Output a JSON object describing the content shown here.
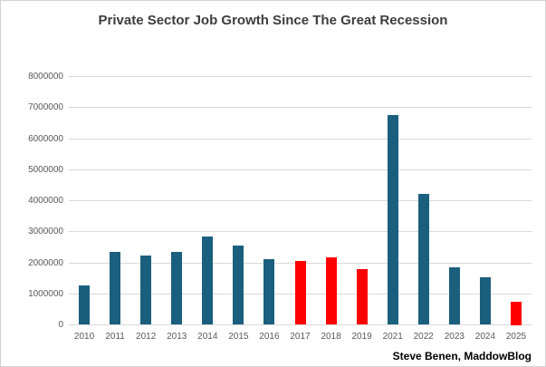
{
  "chart_data": {
    "type": "bar",
    "title": "Private Sector Job Growth Since The Great Recession",
    "attribution": "Steve Benen, MaddowBlog",
    "categories": [
      "2010",
      "2011",
      "2012",
      "2013",
      "2014",
      "2015",
      "2016",
      "2017",
      "2018",
      "2019",
      "2021",
      "2022",
      "2023",
      "2024",
      "2025"
    ],
    "values": [
      1280000,
      2350000,
      2240000,
      2350000,
      2840000,
      2550000,
      2130000,
      2070000,
      2180000,
      1800000,
      6770000,
      4210000,
      1840000,
      1540000,
      750000
    ],
    "highlight_years": [
      "2017",
      "2018",
      "2019",
      "2025"
    ],
    "ylim": [
      0,
      8000000
    ],
    "ytick_step": 1000000,
    "yticks": [
      0,
      1000000,
      2000000,
      3000000,
      4000000,
      5000000,
      6000000,
      7000000,
      8000000
    ],
    "xlabel": "",
    "ylabel": "",
    "grid": true,
    "legend": "none",
    "colors": {
      "bar_default": "#1b5f7e",
      "bar_highlight": "#ff0000",
      "gridline": "#d9d9d9",
      "axis_label_color": "#595959",
      "title_color": "#3d3d3d",
      "attribution_color": "#000000"
    }
  }
}
